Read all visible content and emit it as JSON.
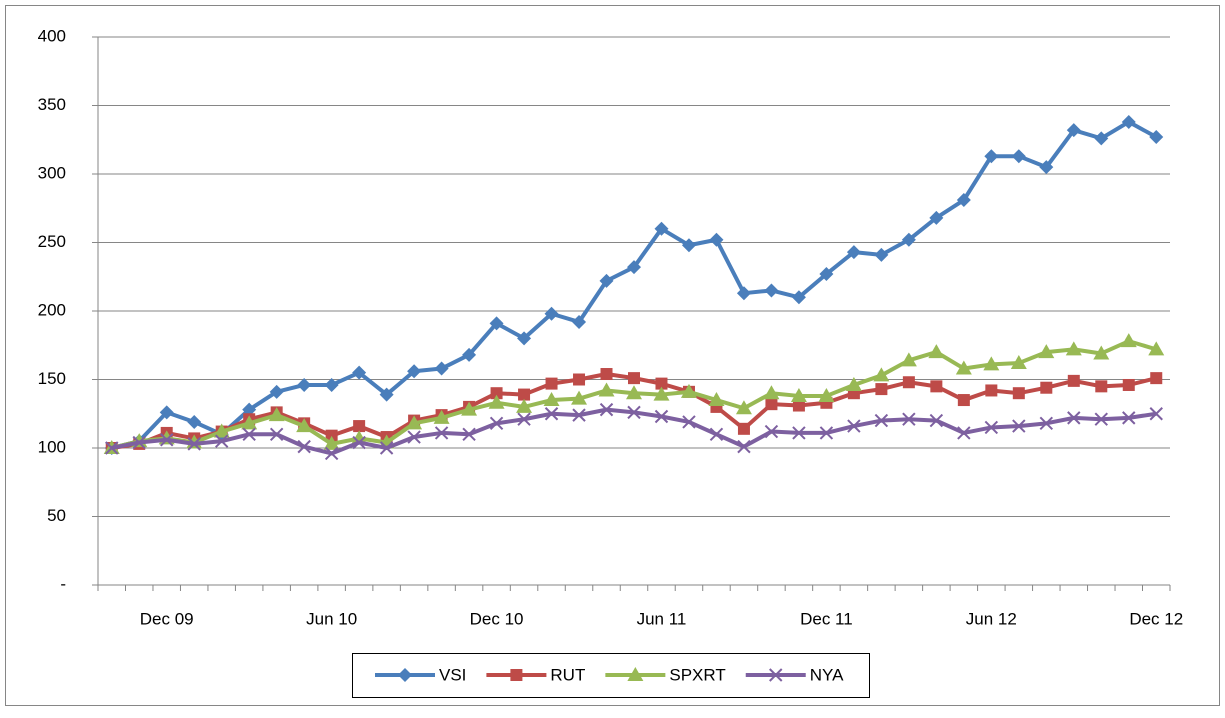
{
  "chart_data": {
    "type": "line",
    "categories": [
      null,
      null,
      "Dec 09",
      null,
      null,
      null,
      null,
      null,
      "Jun 10",
      null,
      null,
      null,
      null,
      null,
      "Dec 10",
      null,
      null,
      null,
      null,
      null,
      "Jun 11",
      null,
      null,
      null,
      null,
      null,
      "Dec 11",
      null,
      null,
      null,
      null,
      null,
      "Jun 12",
      null,
      null,
      null,
      null,
      null,
      "Dec 12"
    ],
    "series": [
      {
        "name": "VSI",
        "color": "#4a7ebb",
        "marker": "diamond",
        "values": [
          100,
          105,
          126,
          119,
          110,
          128,
          141,
          146,
          146,
          155,
          139,
          156,
          158,
          168,
          191,
          180,
          198,
          192,
          222,
          232,
          260,
          248,
          252,
          213,
          215,
          210,
          227,
          243,
          241,
          252,
          268,
          281,
          313,
          313,
          305,
          332,
          326,
          338,
          327
        ]
      },
      {
        "name": "RUT",
        "color": "#be4b48",
        "marker": "square",
        "values": [
          100,
          103,
          111,
          107,
          112,
          121,
          126,
          118,
          109,
          116,
          108,
          120,
          124,
          130,
          140,
          139,
          147,
          150,
          154,
          151,
          147,
          141,
          130,
          114,
          132,
          131,
          133,
          140,
          143,
          148,
          145,
          135,
          142,
          140,
          144,
          149,
          145,
          146,
          151
        ]
      },
      {
        "name": "SPXRT",
        "color": "#98b954",
        "marker": "triangle",
        "values": [
          100,
          105,
          107,
          104,
          112,
          118,
          124,
          116,
          103,
          107,
          104,
          118,
          122,
          128,
          133,
          130,
          135,
          136,
          142,
          140,
          139,
          141,
          135,
          129,
          140,
          138,
          138,
          146,
          153,
          164,
          170,
          158,
          161,
          162,
          170,
          172,
          169,
          178,
          172
        ]
      },
      {
        "name": "NYA",
        "color": "#7d60a0",
        "marker": "x",
        "values": [
          100,
          104,
          106,
          103,
          105,
          110,
          110,
          101,
          96,
          104,
          100,
          108,
          111,
          110,
          118,
          121,
          125,
          124,
          128,
          126,
          123,
          119,
          110,
          101,
          112,
          111,
          111,
          116,
          120,
          121,
          120,
          111,
          115,
          116,
          118,
          122,
          121,
          122,
          125
        ]
      }
    ],
    "ylim": [
      0,
      400
    ],
    "yticks": [
      {
        "value": 0,
        "label": "-"
      },
      50,
      100,
      150,
      200,
      250,
      300,
      350,
      400
    ],
    "grid": true,
    "legend": "bottom"
  }
}
